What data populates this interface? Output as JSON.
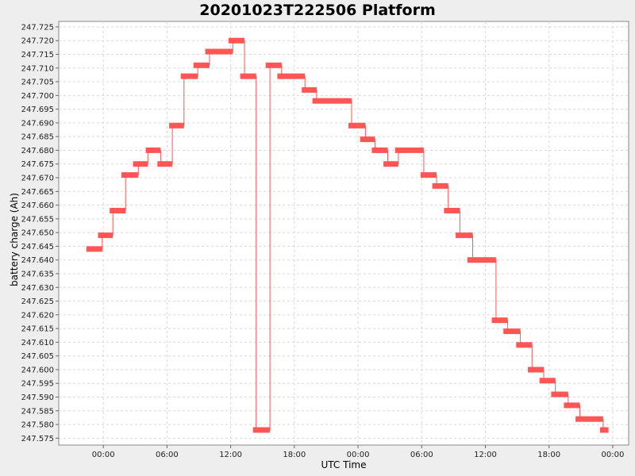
{
  "chart_data": {
    "type": "line",
    "title": "20201023T222506 Platform",
    "xlabel": "UTC Time",
    "ylabel": "battery charge (Ah)",
    "grid": true,
    "x_ticks": [
      "00:00",
      "06:00",
      "12:00",
      "18:00",
      "00:00",
      "06:00",
      "12:00",
      "18:00",
      "00:00"
    ],
    "xlim": [
      -4.2,
      49.5
    ],
    "ylim": [
      247.5725,
      247.727
    ],
    "y_ticks": [
      "247.575",
      "247.580",
      "247.585",
      "247.590",
      "247.595",
      "247.600",
      "247.605",
      "247.610",
      "247.615",
      "247.620",
      "247.625",
      "247.630",
      "247.635",
      "247.640",
      "247.645",
      "247.650",
      "247.655",
      "247.660",
      "247.665",
      "247.670",
      "247.675",
      "247.680",
      "247.685",
      "247.690",
      "247.695",
      "247.700",
      "247.705",
      "247.710",
      "247.715",
      "247.720",
      "247.725"
    ],
    "series": [
      {
        "color": "#ff5555",
        "step_segments": [
          [
            -1.6,
            -0.1,
            247.644
          ],
          [
            -0.5,
            0.9,
            247.649
          ],
          [
            0.6,
            2.1,
            247.658
          ],
          [
            1.7,
            3.3,
            247.671
          ],
          [
            2.8,
            4.2,
            247.675
          ],
          [
            4.0,
            5.4,
            247.68
          ],
          [
            5.1,
            6.5,
            247.675
          ],
          [
            6.2,
            7.6,
            247.689
          ],
          [
            7.3,
            8.9,
            247.707
          ],
          [
            8.5,
            10.0,
            247.711
          ],
          [
            9.6,
            12.2,
            247.716
          ],
          [
            11.8,
            13.3,
            247.72
          ],
          [
            12.9,
            14.4,
            247.707
          ],
          [
            14.1,
            15.7,
            247.578
          ],
          [
            15.3,
            16.8,
            247.711
          ],
          [
            16.4,
            19.0,
            247.707
          ],
          [
            18.7,
            20.1,
            247.702
          ],
          [
            19.7,
            23.4,
            247.698
          ],
          [
            23.1,
            24.7,
            247.689
          ],
          [
            24.2,
            25.6,
            247.684
          ],
          [
            25.3,
            26.8,
            247.68
          ],
          [
            26.4,
            27.8,
            247.675
          ],
          [
            27.5,
            30.2,
            247.68
          ],
          [
            29.9,
            31.4,
            247.671
          ],
          [
            31.0,
            32.5,
            247.667
          ],
          [
            32.1,
            33.6,
            247.658
          ],
          [
            33.2,
            34.8,
            247.649
          ],
          [
            34.3,
            37.0,
            247.64
          ],
          [
            36.6,
            38.1,
            247.618
          ],
          [
            37.7,
            39.3,
            247.614
          ],
          [
            38.9,
            40.4,
            247.609
          ],
          [
            40.0,
            41.5,
            247.6
          ],
          [
            41.1,
            42.6,
            247.596
          ],
          [
            42.2,
            43.8,
            247.591
          ],
          [
            43.4,
            44.9,
            247.587
          ],
          [
            44.5,
            47.1,
            247.582
          ],
          [
            46.8,
            47.6,
            247.578
          ]
        ]
      }
    ]
  }
}
